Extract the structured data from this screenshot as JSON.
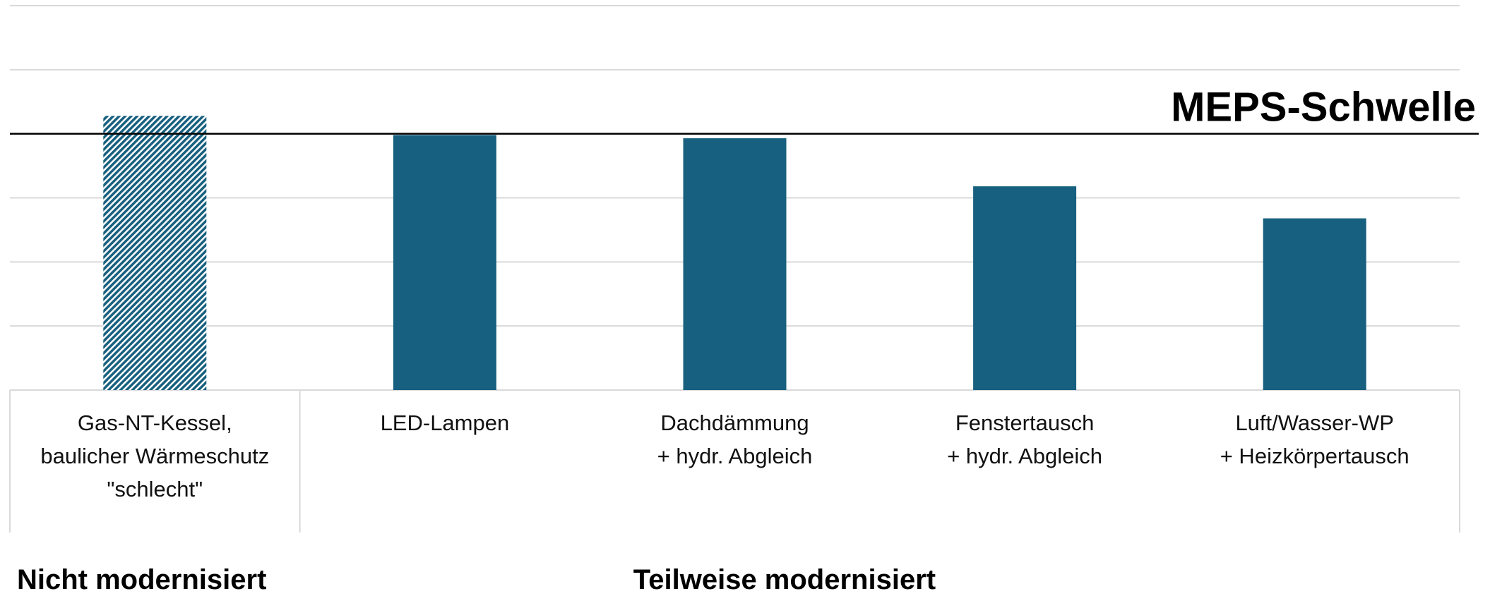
{
  "chart_data": {
    "type": "bar",
    "categories": [
      "Gas-NT-Kessel,\nbaulicher Wärmeschutz\n\"schlecht\"",
      "LED-Lampen",
      "Dachdämmung\n+ hydr. Abgleich",
      "Fenstertausch\n+ hydr. Abgleich",
      "Luft/Wasser-WP\n+ Heizkörpertausch"
    ],
    "values": [
      4.28,
      3.98,
      3.93,
      3.18,
      2.68
    ],
    "color": "#17607f",
    "bar_styles": [
      "hatched",
      "solid",
      "solid",
      "solid",
      "solid"
    ],
    "ylim": [
      0,
      6
    ],
    "yticks": [
      0,
      1,
      2,
      3,
      4,
      5,
      6
    ],
    "grid": true,
    "threshold": {
      "label": "MEPS-Schwelle",
      "value": 4
    },
    "groups": [
      {
        "label": "Nicht modernisiert",
        "categories": 1
      },
      {
        "label": "Teilweise modernisiert",
        "categories": 4
      }
    ]
  }
}
